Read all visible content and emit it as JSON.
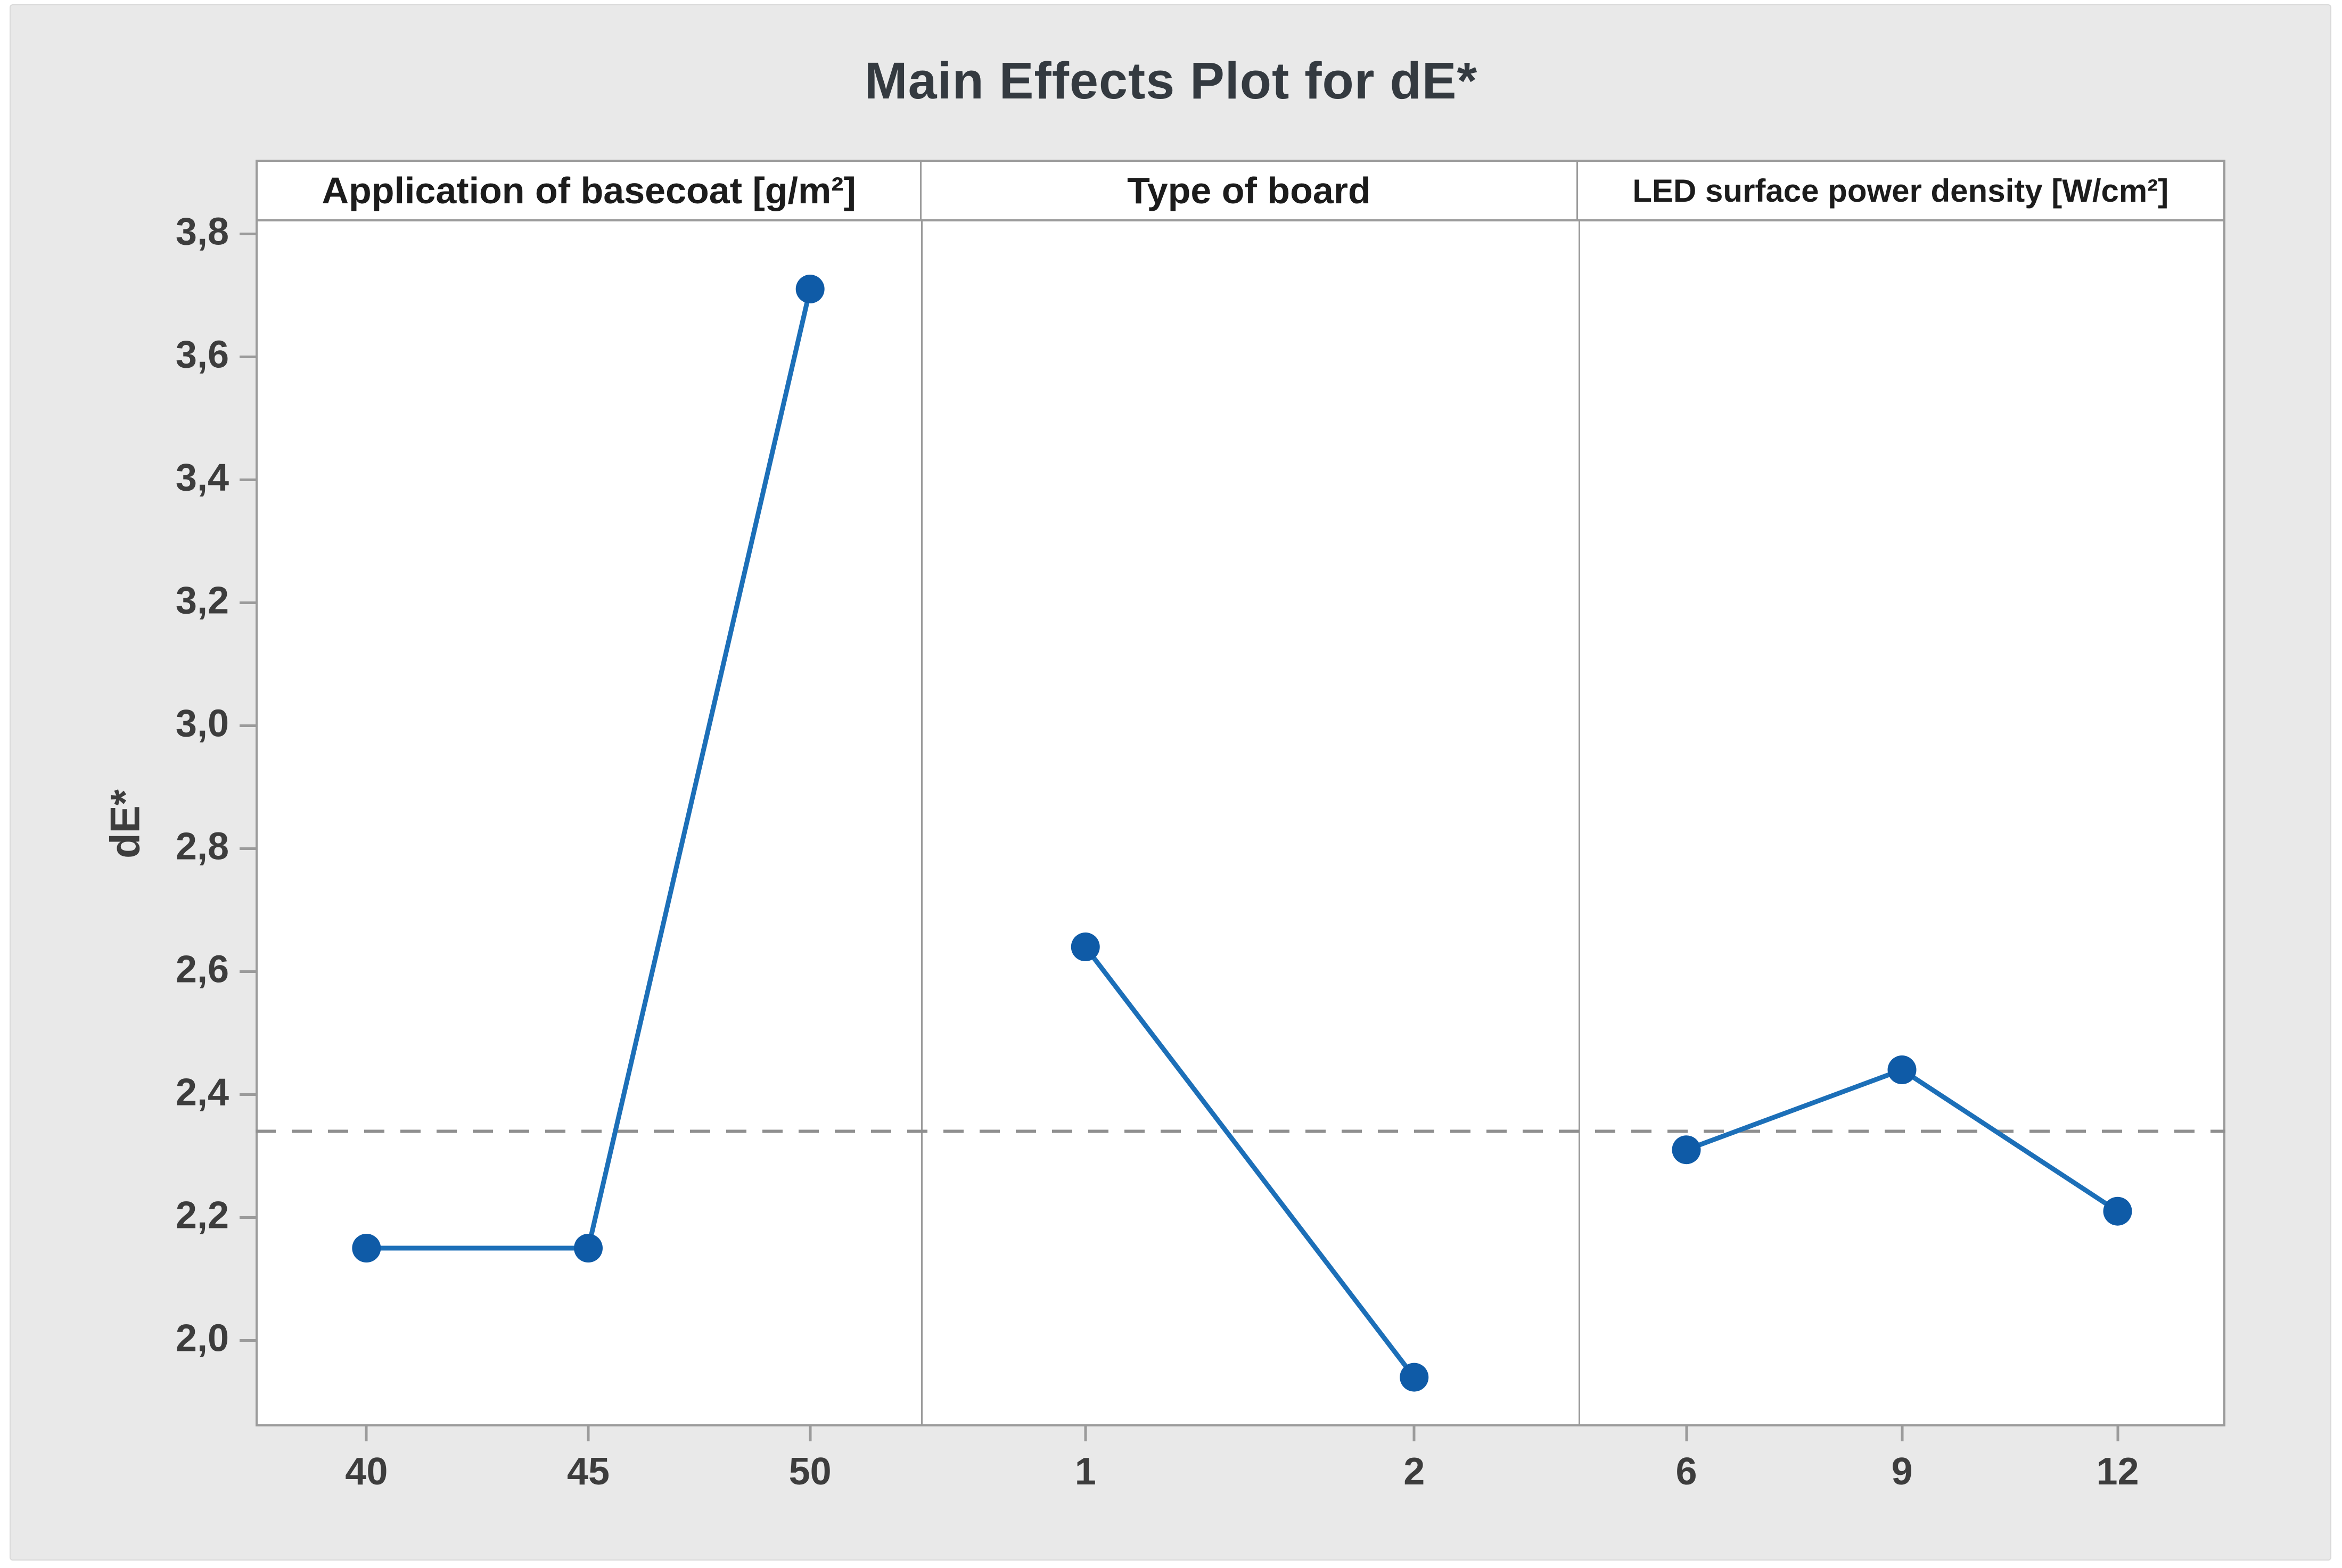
{
  "figure": {
    "background_color": "#e9e9e9",
    "plot_background_color": "#ffffff",
    "border_color": "#9b9b9b"
  },
  "chart_data": {
    "type": "line",
    "title": "Main Effects Plot for dE*",
    "ylabel": "dE*",
    "xlabel": "",
    "ylim": [
      1.86,
      3.82
    ],
    "decimal_separator": ",",
    "grid": "off",
    "legend": "none",
    "marker": "circle",
    "colors": {
      "marker": "#0f5ba7",
      "line": "#1c6fb8",
      "mean_line": "#8f8f8f",
      "tick_text": "#3d3d3d"
    },
    "mean_line": {
      "value": 2.34,
      "style": "dashed"
    },
    "yticks": [
      {
        "value": 3.8,
        "label": "3,8"
      },
      {
        "value": 3.6,
        "label": "3,6"
      },
      {
        "value": 3.4,
        "label": "3,4"
      },
      {
        "value": 3.2,
        "label": "3,2"
      },
      {
        "value": 3.0,
        "label": "3,0"
      },
      {
        "value": 2.8,
        "label": "2,8"
      },
      {
        "value": 2.6,
        "label": "2,6"
      },
      {
        "value": 2.4,
        "label": "2,4"
      },
      {
        "value": 2.2,
        "label": "2,2"
      },
      {
        "value": 2.0,
        "label": "2,0"
      }
    ],
    "panels": [
      {
        "label": "Application of basecoat [g/m²]",
        "categories": [
          "40",
          "45",
          "50"
        ],
        "values": [
          2.15,
          2.15,
          3.71
        ]
      },
      {
        "label": "Type of board",
        "categories": [
          "1",
          "2"
        ],
        "values": [
          2.64,
          1.94
        ]
      },
      {
        "label": "LED surface power density [W/cm²]",
        "categories": [
          "6",
          "9",
          "12"
        ],
        "values": [
          2.31,
          2.44,
          2.21
        ]
      }
    ]
  }
}
